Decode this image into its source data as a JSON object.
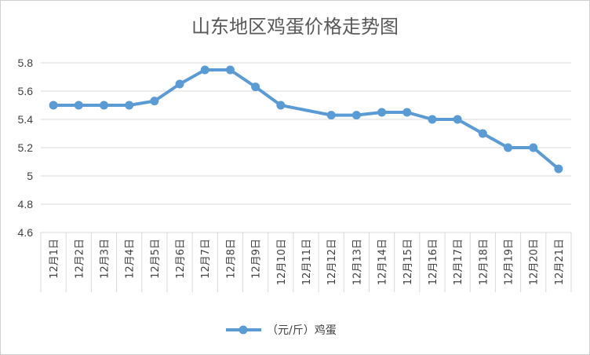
{
  "chart_data": {
    "type": "line",
    "title": "山东地区鸡蛋价格走势图",
    "categories": [
      "12月1日",
      "12月2日",
      "12月3日",
      "12月4日",
      "12月5日",
      "12月6日",
      "12月7日",
      "12月8日",
      "12月9日",
      "12月10日",
      "12月11日",
      "12月12日",
      "12月13日",
      "12月14日",
      "12月15日",
      "12月16日",
      "12月17日",
      "12月18日",
      "12月19日",
      "12月20日",
      "12月21日"
    ],
    "series": [
      {
        "name": "（元/斤）鸡蛋",
        "color": "#5b9bd5",
        "values": [
          5.5,
          5.5,
          5.5,
          5.5,
          5.53,
          5.65,
          5.75,
          5.75,
          5.63,
          5.5,
          null,
          5.43,
          5.43,
          5.45,
          5.45,
          5.4,
          5.4,
          5.3,
          5.2,
          5.2,
          5.05
        ]
      }
    ],
    "ylim": [
      4.6,
      5.8
    ],
    "yticks": [
      "4.6",
      "4.8",
      "5",
      "5.2",
      "5.4",
      "5.6",
      "5.8"
    ],
    "grid": true,
    "legend_position": "bottom"
  }
}
